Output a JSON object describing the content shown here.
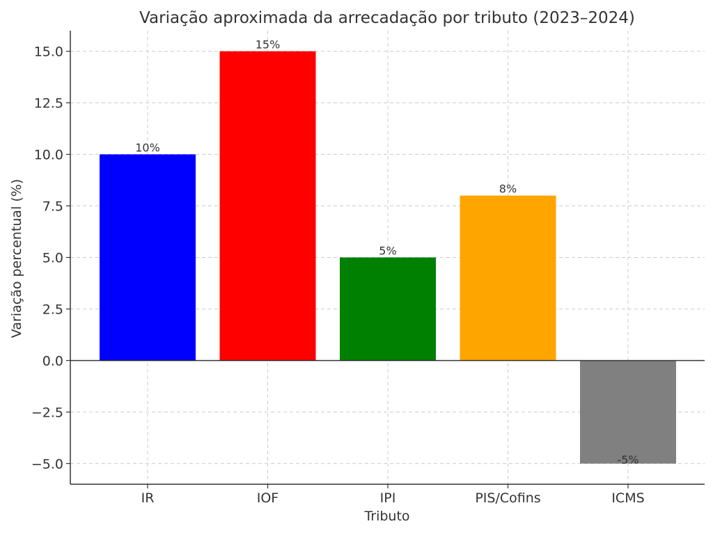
{
  "chart_data": {
    "type": "bar",
    "title": "Variação aproximada da arrecadação por tributo (2023–2024)",
    "xlabel": "Tributo",
    "ylabel": "Variação percentual (%)",
    "categories": [
      "IR",
      "IOF",
      "IPI",
      "PIS/Cofins",
      "ICMS"
    ],
    "values": [
      10,
      15,
      5,
      8,
      -5
    ],
    "value_labels": [
      "10%",
      "15%",
      "5%",
      "8%",
      "-5%"
    ],
    "colors": [
      "#0000ff",
      "#ff0000",
      "#008000",
      "#ffa500",
      "#808080"
    ],
    "ylim": [
      -6,
      16
    ],
    "yticks": [
      15.0,
      12.5,
      10.0,
      7.5,
      5.0,
      2.5,
      0.0,
      -2.5,
      -5.0
    ],
    "ytick_labels": [
      "15.0",
      "12.5",
      "10.0",
      "7.5",
      "5.0",
      "2.5",
      "0.0",
      "−2.5",
      "−5.0"
    ],
    "grid": true,
    "zero_line": true
  }
}
